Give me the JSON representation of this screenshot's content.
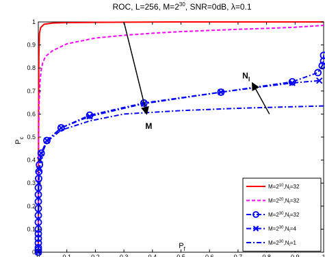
{
  "chart_data": {
    "type": "line",
    "title": "ROC, L=256, M=2^30, SNR=0dB, λ=0.1",
    "title_parts": {
      "pre": "ROC, L=256, M=2",
      "sup": "30",
      "post": ", SNR=0dB, λ=0.1"
    },
    "xlabel": "P_f",
    "xlabel_parts": {
      "main": "P",
      "sub": "f"
    },
    "ylabel": "P_c",
    "ylabel_parts": {
      "main": "P",
      "sub": "c"
    },
    "xlim": [
      0,
      1
    ],
    "ylim": [
      0,
      1
    ],
    "xticks": [
      "0",
      "0.1",
      "0.2",
      "0.3",
      "0.4",
      "0.5",
      "0.6",
      "0.7",
      "0.8",
      "0.9",
      "1"
    ],
    "yticks": [
      "0",
      "0.1",
      "0.2",
      "0.3",
      "0.4",
      "0.5",
      "0.6",
      "0.7",
      "0.8",
      "0.9",
      "1"
    ],
    "grid": false,
    "legend_position": "bottom-right",
    "series": [
      {
        "name": "M=2^10,N_l=32",
        "label_parts": {
          "a": "M=2",
          "sup": "10",
          "b": ",N",
          "sub": "l",
          "c": "=32"
        },
        "color": "#ff0000",
        "line": "solid",
        "marker": "none",
        "x": [
          0,
          0.001,
          0.002,
          0.004,
          0.008,
          0.02,
          0.05,
          0.1,
          0.2,
          0.3,
          0.5,
          0.7,
          0.9,
          1.0
        ],
        "y": [
          0,
          0.6,
          0.85,
          0.95,
          0.975,
          0.99,
          0.995,
          0.997,
          0.998,
          0.999,
          1.0,
          1.0,
          1.0,
          1.0
        ]
      },
      {
        "name": "M=2^20,N_l=32",
        "label_parts": {
          "a": "M=2",
          "sup": "20",
          "b": ",N",
          "sub": "l",
          "c": "=32"
        },
        "color": "#ff00ff",
        "line": "dashed",
        "marker": "none",
        "x": [
          0,
          0.001,
          0.003,
          0.006,
          0.01,
          0.015,
          0.025,
          0.05,
          0.1,
          0.2,
          0.3,
          0.4,
          0.5,
          0.6,
          0.7,
          0.8,
          0.9,
          1.0
        ],
        "y": [
          0,
          0.5,
          0.65,
          0.74,
          0.79,
          0.82,
          0.85,
          0.875,
          0.905,
          0.93,
          0.942,
          0.951,
          0.958,
          0.963,
          0.968,
          0.972,
          0.977,
          0.985
        ]
      },
      {
        "name": "M=2^30,N_l=32",
        "label_parts": {
          "a": "M=2",
          "sup": "30",
          "b": ",N",
          "sub": "l",
          "c": "=32"
        },
        "color": "#0000ff",
        "line": "dashdot",
        "marker": "circle",
        "x": [
          0,
          0,
          0,
          0,
          0,
          0,
          0,
          0,
          0,
          0,
          0,
          0,
          0,
          0.001,
          0.002,
          0.004,
          0.01,
          0.03,
          0.08,
          0.18,
          0.37,
          0.64,
          0.89,
          0.98,
          0.995,
          1.0,
          1.0
        ],
        "y": [
          0,
          0.01,
          0.02,
          0.04,
          0.06,
          0.08,
          0.1,
          0.13,
          0.16,
          0.19,
          0.22,
          0.25,
          0.28,
          0.32,
          0.35,
          0.38,
          0.43,
          0.485,
          0.54,
          0.595,
          0.648,
          0.695,
          0.74,
          0.78,
          0.81,
          0.83,
          0.855
        ]
      },
      {
        "name": "M=2^30,N_l=4",
        "label_parts": {
          "a": "M=2",
          "sup": "30",
          "b": ",N",
          "sub": "l",
          "c": "=4"
        },
        "color": "#0000ff",
        "line": "dashdot",
        "marker": "x",
        "x": [
          0,
          0.001,
          0.003,
          0.006,
          0.01,
          0.03,
          0.08,
          0.18,
          0.37,
          0.64,
          0.89,
          0.985
        ],
        "y": [
          0,
          0.3,
          0.36,
          0.4,
          0.43,
          0.485,
          0.54,
          0.59,
          0.645,
          0.695,
          0.735,
          0.745
        ]
      },
      {
        "name": "M=2^30,N_l=1",
        "label_parts": {
          "a": "M=2",
          "sup": "30",
          "b": ",N",
          "sub": "l",
          "c": "=1"
        },
        "color": "#0000ff",
        "line": "dashdot",
        "marker": "none",
        "x": [
          0,
          0.001,
          0.003,
          0.006,
          0.01,
          0.03,
          0.08,
          0.18,
          0.3,
          0.5,
          0.7,
          0.9,
          1.0
        ],
        "y": [
          0,
          0.28,
          0.34,
          0.38,
          0.42,
          0.48,
          0.53,
          0.57,
          0.6,
          0.615,
          0.625,
          0.632,
          0.635
        ]
      }
    ],
    "annotations": [
      {
        "text": "M",
        "x": 0.375,
        "y": 0.535,
        "arrow_from": [
          0.3,
          1.0
        ],
        "arrow_to": [
          0.38,
          0.6
        ]
      },
      {
        "text": "N_l",
        "text_parts": {
          "main": "N",
          "sub": "l"
        },
        "x": 0.715,
        "y": 0.755,
        "arrow_from": [
          0.81,
          0.6
        ],
        "arrow_to": [
          0.75,
          0.735
        ]
      }
    ]
  }
}
